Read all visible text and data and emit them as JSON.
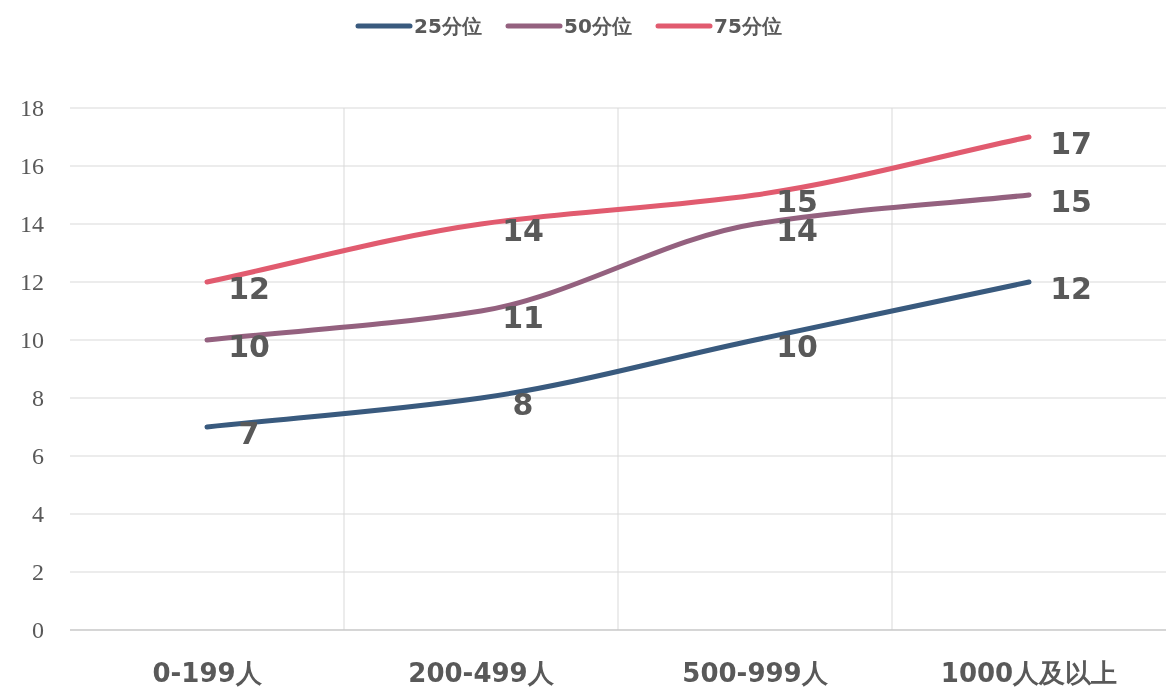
{
  "chart_data": {
    "type": "line",
    "categories": [
      "0-199人",
      "200-499人",
      "500-999人",
      "1000人及以上"
    ],
    "series": [
      {
        "name": "25分位",
        "color": "#395a7e",
        "values": [
          7,
          8,
          10,
          12
        ]
      },
      {
        "name": "50分位",
        "color": "#94617f",
        "values": [
          10,
          11,
          14,
          15
        ]
      },
      {
        "name": "75分位",
        "color": "#e15b6f",
        "values": [
          12,
          14,
          15,
          17
        ]
      }
    ],
    "ylim": [
      0,
      18
    ],
    "yticks": [
      0,
      2,
      4,
      6,
      8,
      10,
      12,
      14,
      16,
      18
    ],
    "grid": true,
    "legend": "top",
    "data_labels": true
  }
}
